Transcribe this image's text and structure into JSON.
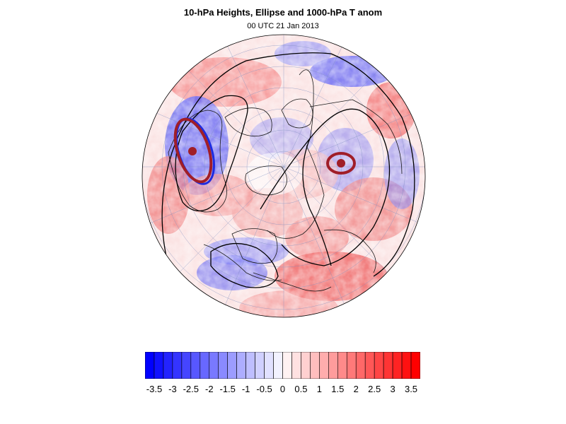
{
  "title": "10-hPa Heights, Ellipse and 1000-hPa T anom",
  "subtitle": "00 UTC 21 Jan 2013",
  "colorbar": {
    "labels": [
      "-3.5",
      "-3",
      "-2.5",
      "-2",
      "-1.5",
      "-1",
      "-0.5",
      "0",
      "0.5",
      "1",
      "1.5",
      "2",
      "2.5",
      "3",
      "3.5"
    ],
    "min_color": "#0000ff",
    "zero_color": "#ffffff",
    "max_color": "#ff0000"
  },
  "colors": {
    "anomaly_negative": "#0000ff",
    "anomaly_positive": "#ff0000",
    "ellipse": "#a01e28",
    "contours": "#000000"
  }
}
